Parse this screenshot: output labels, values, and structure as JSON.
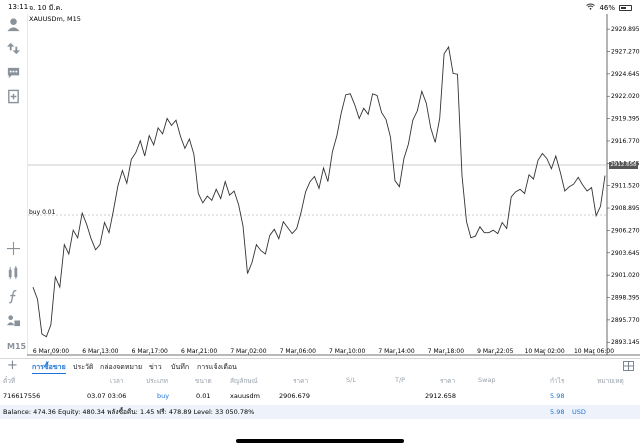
{
  "status_bar": {
    "time": "13:11",
    "date": "จ. 10 มี.ค.",
    "battery": "46%"
  },
  "chart": {
    "symbol_label": "XAUUSDm, M15",
    "order_label": "buy 0.01",
    "current_price_label": "2912.658",
    "timeframe": "M15",
    "price_axis": [
      "2929.895",
      "2927.270",
      "2924.645",
      "2922.020",
      "2919.395",
      "2916.770",
      "2914.145",
      "2911.520",
      "2908.895",
      "2906.270",
      "2903.645",
      "2901.020",
      "2898.395",
      "2895.770",
      "2893.145"
    ],
    "time_axis": [
      "6 Mar 09:00",
      "6 Mar 13:00",
      "6 Mar 17:00",
      "6 Mar 21:00",
      "7 Mar 02:00",
      "7 Mar 06:00",
      "7 Mar 10:00",
      "7 Mar 14:00",
      "7 Mar 18:00",
      "9 Mar 22:05",
      "10 Mar 02:00",
      "10 Mar 06:00"
    ]
  },
  "chart_data": {
    "type": "line",
    "symbol": "XAUUSDm",
    "timeframe": "M15",
    "ylim": [
      2892.0,
      2931.2
    ],
    "close": [
      2899.6,
      2898.2,
      2894.1,
      2893.8,
      2895.2,
      2900.8,
      2899.6,
      2904.6,
      2903.5,
      2906.3,
      2905.4,
      2908.3,
      2907.0,
      2905.3,
      2904.0,
      2904.6,
      2907.2,
      2906.0,
      2908.6,
      2911.5,
      2913.3,
      2911.8,
      2914.6,
      2915.4,
      2916.8,
      2915.0,
      2917.4,
      2916.3,
      2918.3,
      2917.6,
      2919.4,
      2918.6,
      2919.2,
      2917.3,
      2915.9,
      2917.0,
      2915.2,
      2910.6,
      2909.5,
      2910.3,
      2909.8,
      2911.1,
      2910.0,
      2912.0,
      2910.4,
      2910.9,
      2909.3,
      2906.8,
      2901.2,
      2902.5,
      2904.6,
      2903.9,
      2903.5,
      2905.7,
      2906.4,
      2905.3,
      2907.3,
      2906.6,
      2905.9,
      2906.5,
      2908.4,
      2910.8,
      2912.0,
      2912.6,
      2911.2,
      2913.6,
      2912.0,
      2915.5,
      2917.4,
      2920.1,
      2922.2,
      2922.3,
      2921.0,
      2919.4,
      2920.6,
      2919.9,
      2922.3,
      2922.1,
      2920.1,
      2919.3,
      2917.2,
      2912.1,
      2911.4,
      2914.7,
      2916.4,
      2919.2,
      2920.3,
      2922.6,
      2921.2,
      2918.3,
      2916.6,
      2919.4,
      2927.0,
      2927.8,
      2924.7,
      2924.6,
      2912.7,
      2907.3,
      2905.4,
      2905.6,
      2906.7,
      2906.0,
      2906.0,
      2906.3,
      2905.9,
      2907.2,
      2906.5,
      2910.2,
      2910.8,
      2911.1,
      2910.6,
      2912.8,
      2912.3,
      2914.5,
      2915.3,
      2914.7,
      2913.5,
      2915.0,
      2913.1,
      2910.9,
      2911.4,
      2911.7,
      2912.5,
      2911.6,
      2910.9,
      2911.3,
      2908.0,
      2909.1,
      2912.7
    ]
  },
  "tabs": [
    "การซื้อขาย",
    "ประวัติ",
    "กล่องจดหมาย",
    "ข่าว",
    "บันทึก",
    "การแจ้งเตือน"
  ],
  "table": {
    "headers": {
      "ticket": "ตั๋วที่",
      "time": "เวลา",
      "type": "ประเภท",
      "volume": "ขนาด",
      "symbol": "สัญลักษณ์",
      "price": "ราคา",
      "sl": "S/L",
      "tp": "T/P",
      "price2": "ราคา",
      "swap": "Swap",
      "profit": "กำไร",
      "comment": "หมายเหตุ"
    },
    "row": {
      "ticket": "716617556",
      "time": "03.07 03:06",
      "type": "buy",
      "volume": "0.01",
      "symbol": "xauusdm",
      "price": "2906.679",
      "sl": "",
      "tp": "",
      "price2": "2912.658",
      "swap": "",
      "profit": "5.98",
      "comment": ""
    }
  },
  "balance": {
    "text": "Balance: 474.36 Equity: 480.34 พลังซื้อคืน: 1.45 ฟรี: 478.89 Level: 33 050.78%",
    "profit": "5.98",
    "currency": "USD"
  },
  "colors": {
    "accent": "#1e73d6",
    "price_line": "#333333"
  }
}
